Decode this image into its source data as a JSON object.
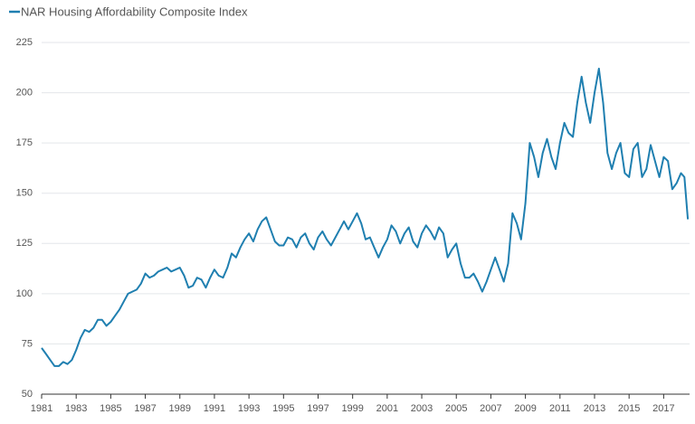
{
  "chart_data": {
    "type": "line",
    "x": [
      1981,
      1981.25,
      1981.5,
      1981.75,
      1982,
      1982.25,
      1982.5,
      1982.75,
      1983,
      1983.25,
      1983.5,
      1983.75,
      1984,
      1984.25,
      1984.5,
      1984.75,
      1985,
      1985.25,
      1985.5,
      1985.75,
      1986,
      1986.25,
      1986.5,
      1986.75,
      1987,
      1987.25,
      1987.5,
      1987.75,
      1988,
      1988.25,
      1988.5,
      1988.75,
      1989,
      1989.25,
      1989.5,
      1989.75,
      1990,
      1990.25,
      1990.5,
      1990.75,
      1991,
      1991.25,
      1991.5,
      1991.75,
      1992,
      1992.25,
      1992.5,
      1992.75,
      1993,
      1993.25,
      1993.5,
      1993.75,
      1994,
      1994.25,
      1994.5,
      1994.75,
      1995,
      1995.25,
      1995.5,
      1995.75,
      1996,
      1996.25,
      1996.5,
      1996.75,
      1997,
      1997.25,
      1997.5,
      1997.75,
      1998,
      1998.25,
      1998.5,
      1998.75,
      1999,
      1999.25,
      1999.5,
      1999.75,
      2000,
      2000.25,
      2000.5,
      2000.75,
      2001,
      2001.25,
      2001.5,
      2001.75,
      2002,
      2002.25,
      2002.5,
      2002.75,
      2003,
      2003.25,
      2003.5,
      2003.75,
      2004,
      2004.25,
      2004.5,
      2004.75,
      2005,
      2005.25,
      2005.5,
      2005.75,
      2006,
      2006.25,
      2006.5,
      2006.75,
      2007,
      2007.25,
      2007.5,
      2007.75,
      2008,
      2008.25,
      2008.5,
      2008.75,
      2009,
      2009.25,
      2009.5,
      2009.75,
      2010,
      2010.25,
      2010.5,
      2010.75,
      2011,
      2011.25,
      2011.5,
      2011.75,
      2012,
      2012.25,
      2012.5,
      2012.75,
      2013,
      2013.25,
      2013.5,
      2013.75,
      2014,
      2014.25,
      2014.5,
      2014.75,
      2015,
      2015.25,
      2015.5,
      2015.75,
      2016,
      2016.25,
      2016.5,
      2016.75,
      2017,
      2017.25,
      2017.5,
      2017.75,
      2018,
      2018.2,
      2018.4
    ],
    "series": [
      {
        "name": "NAR Housing Affordability Composite Index",
        "color": "#1f7fb0",
        "values": [
          73,
          70,
          67,
          64,
          64,
          66,
          65,
          67,
          72,
          78,
          82,
          81,
          83,
          87,
          87,
          84,
          86,
          89,
          92,
          96,
          100,
          101,
          102,
          105,
          110,
          108,
          109,
          111,
          112,
          113,
          111,
          112,
          113,
          109,
          103,
          104,
          108,
          107,
          103,
          108,
          112,
          109,
          108,
          113,
          120,
          118,
          123,
          127,
          130,
          126,
          132,
          136,
          138,
          132,
          126,
          124,
          124,
          128,
          127,
          123,
          128,
          130,
          125,
          122,
          128,
          131,
          127,
          124,
          128,
          132,
          136,
          132,
          136,
          140,
          135,
          127,
          128,
          123,
          118,
          123,
          127,
          134,
          131,
          125,
          130,
          133,
          126,
          123,
          130,
          134,
          131,
          127,
          133,
          130,
          118,
          122,
          125,
          115,
          108,
          108,
          110,
          106,
          101,
          106,
          112,
          118,
          112,
          106,
          115,
          140,
          135,
          127,
          145,
          175,
          168,
          158,
          170,
          177,
          168,
          162,
          175,
          185,
          180,
          178,
          195,
          208,
          195,
          185,
          200,
          212,
          195,
          170,
          162,
          170,
          175,
          160,
          158,
          172,
          175,
          158,
          162,
          174,
          166,
          158,
          168,
          166,
          152,
          155,
          160,
          158,
          137
        ]
      }
    ],
    "xlim": [
      1981,
      2018.5
    ],
    "xticks": [
      1981,
      1983,
      1985,
      1987,
      1989,
      1991,
      1993,
      1995,
      1997,
      1999,
      2001,
      2003,
      2005,
      2007,
      2009,
      2011,
      2013,
      2015,
      2017
    ],
    "ylim": [
      50,
      225
    ],
    "yticks": [
      50,
      75,
      100,
      125,
      150,
      175,
      200,
      225
    ],
    "grid": true
  }
}
